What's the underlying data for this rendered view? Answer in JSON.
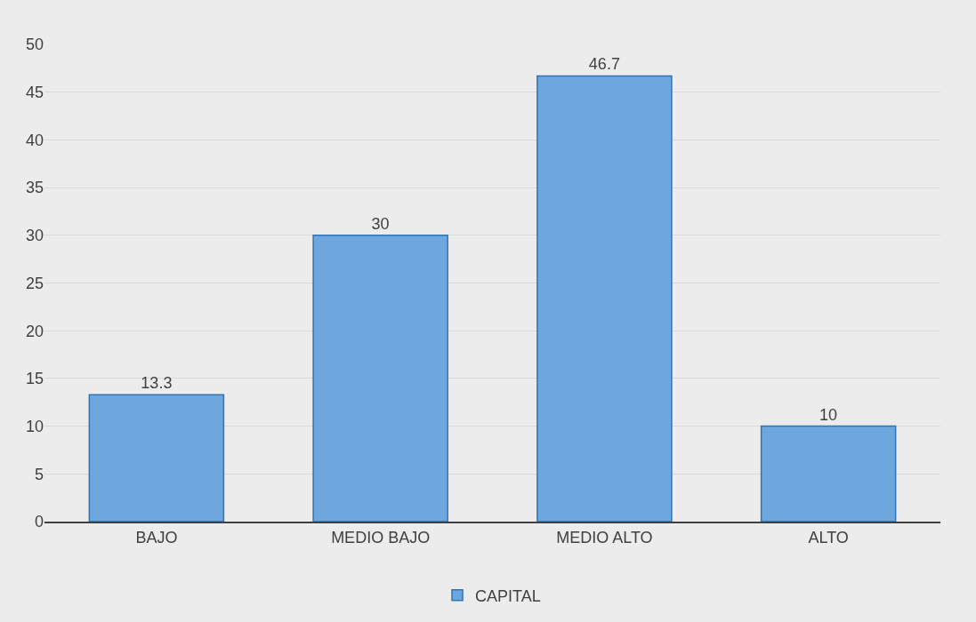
{
  "chart_data": {
    "type": "bar",
    "categories": [
      "BAJO",
      "MEDIO BAJO",
      "MEDIO ALTO",
      "ALTO"
    ],
    "series": [
      {
        "name": "CAPITAL",
        "color": "#6ea6de",
        "values": [
          13.3,
          30,
          46.7,
          10
        ]
      }
    ],
    "ylim": [
      0,
      50
    ],
    "yticks": [
      0,
      5,
      10,
      15,
      20,
      25,
      30,
      35,
      40,
      45,
      50
    ],
    "grid": "y",
    "legend": "bottom",
    "data_labels": true
  }
}
